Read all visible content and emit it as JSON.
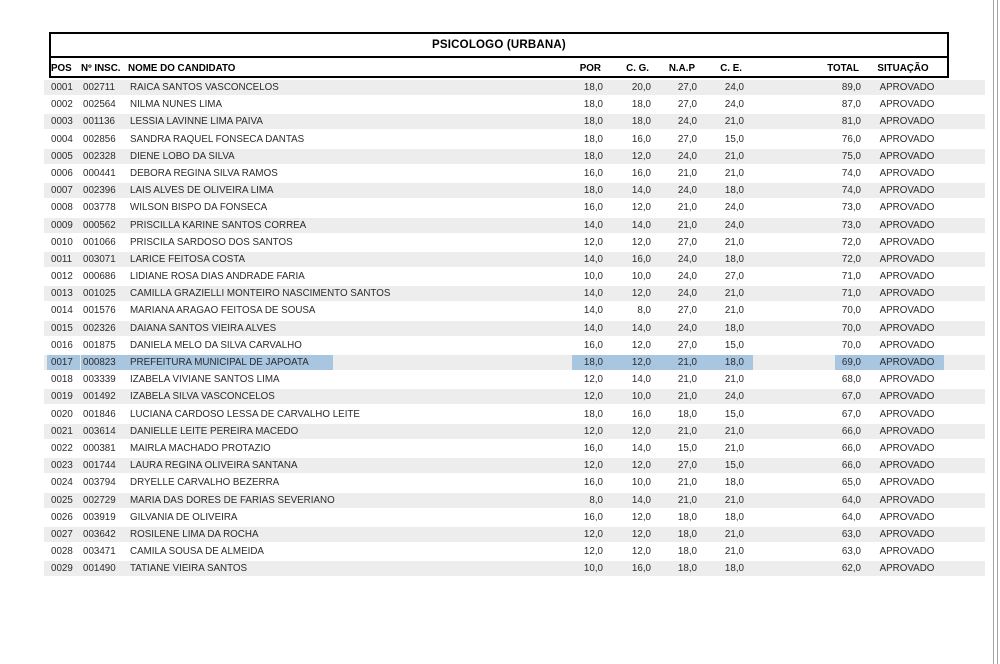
{
  "table": {
    "title": "PSICOLOGO (URBANA)",
    "columns": [
      "POS",
      "Nº INSC.",
      "NOME DO CANDIDATO",
      "POR",
      "C. G.",
      "N.A.P",
      "C. E.",
      "TOTAL",
      "SITUAÇÃO"
    ],
    "selected_pos": "0017",
    "rows": [
      {
        "pos": "0001",
        "insc": "002711",
        "name": "RAICA SANTOS VASCONCELOS",
        "por": "18,0",
        "cg": "20,0",
        "nap": "27,0",
        "ce": "24,0",
        "total": "89,0",
        "situacao": "APROVADO"
      },
      {
        "pos": "0002",
        "insc": "002564",
        "name": "NILMA NUNES LIMA",
        "por": "18,0",
        "cg": "18,0",
        "nap": "27,0",
        "ce": "24,0",
        "total": "87,0",
        "situacao": "APROVADO"
      },
      {
        "pos": "0003",
        "insc": "001136",
        "name": "LESSIA LAVINNE LIMA PAIVA",
        "por": "18,0",
        "cg": "18,0",
        "nap": "24,0",
        "ce": "21,0",
        "total": "81,0",
        "situacao": "APROVADO"
      },
      {
        "pos": "0004",
        "insc": "002856",
        "name": "SANDRA RAQUEL FONSECA DANTAS",
        "por": "18,0",
        "cg": "16,0",
        "nap": "27,0",
        "ce": "15,0",
        "total": "76,0",
        "situacao": "APROVADO"
      },
      {
        "pos": "0005",
        "insc": "002328",
        "name": "DIENE LOBO DA SILVA",
        "por": "18,0",
        "cg": "12,0",
        "nap": "24,0",
        "ce": "21,0",
        "total": "75,0",
        "situacao": "APROVADO"
      },
      {
        "pos": "0006",
        "insc": "000441",
        "name": "DEBORA REGINA SILVA RAMOS",
        "por": "16,0",
        "cg": "16,0",
        "nap": "21,0",
        "ce": "21,0",
        "total": "74,0",
        "situacao": "APROVADO"
      },
      {
        "pos": "0007",
        "insc": "002396",
        "name": "LAIS ALVES DE OLIVEIRA LIMA",
        "por": "18,0",
        "cg": "14,0",
        "nap": "24,0",
        "ce": "18,0",
        "total": "74,0",
        "situacao": "APROVADO"
      },
      {
        "pos": "0008",
        "insc": "003778",
        "name": "WILSON BISPO DA FONSECA",
        "por": "16,0",
        "cg": "12,0",
        "nap": "21,0",
        "ce": "24,0",
        "total": "73,0",
        "situacao": "APROVADO"
      },
      {
        "pos": "0009",
        "insc": "000562",
        "name": "PRISCILLA KARINE SANTOS CORREA",
        "por": "14,0",
        "cg": "14,0",
        "nap": "21,0",
        "ce": "24,0",
        "total": "73,0",
        "situacao": "APROVADO"
      },
      {
        "pos": "0010",
        "insc": "001066",
        "name": "PRISCILA SARDOSO DOS SANTOS",
        "por": "12,0",
        "cg": "12,0",
        "nap": "27,0",
        "ce": "21,0",
        "total": "72,0",
        "situacao": "APROVADO"
      },
      {
        "pos": "0011",
        "insc": "003071",
        "name": "LARICE FEITOSA COSTA",
        "por": "14,0",
        "cg": "16,0",
        "nap": "24,0",
        "ce": "18,0",
        "total": "72,0",
        "situacao": "APROVADO"
      },
      {
        "pos": "0012",
        "insc": "000686",
        "name": "LIDIANE ROSA DIAS ANDRADE FARIA",
        "por": "10,0",
        "cg": "10,0",
        "nap": "24,0",
        "ce": "27,0",
        "total": "71,0",
        "situacao": "APROVADO"
      },
      {
        "pos": "0013",
        "insc": "001025",
        "name": "CAMILLA GRAZIELLI MONTEIRO NASCIMENTO SANTOS",
        "por": "14,0",
        "cg": "12,0",
        "nap": "24,0",
        "ce": "21,0",
        "total": "71,0",
        "situacao": "APROVADO"
      },
      {
        "pos": "0014",
        "insc": "001576",
        "name": "MARIANA ARAGAO FEITOSA DE SOUSA",
        "por": "14,0",
        "cg": "8,0",
        "nap": "27,0",
        "ce": "21,0",
        "total": "70,0",
        "situacao": "APROVADO"
      },
      {
        "pos": "0015",
        "insc": "002326",
        "name": "DAIANA SANTOS VIEIRA ALVES",
        "por": "14,0",
        "cg": "14,0",
        "nap": "24,0",
        "ce": "18,0",
        "total": "70,0",
        "situacao": "APROVADO"
      },
      {
        "pos": "0016",
        "insc": "001875",
        "name": "DANIELA MELO DA SILVA CARVALHO",
        "por": "16,0",
        "cg": "12,0",
        "nap": "27,0",
        "ce": "15,0",
        "total": "70,0",
        "situacao": "APROVADO"
      },
      {
        "pos": "0017",
        "insc": "000823",
        "name": "PREFEITURA MUNICIPAL DE JAPOATA",
        "por": "18,0",
        "cg": "12,0",
        "nap": "21,0",
        "ce": "18,0",
        "total": "69,0",
        "situacao": "APROVADO"
      },
      {
        "pos": "0018",
        "insc": "003339",
        "name": "IZABELA VIVIANE SANTOS LIMA",
        "por": "12,0",
        "cg": "14,0",
        "nap": "21,0",
        "ce": "21,0",
        "total": "68,0",
        "situacao": "APROVADO"
      },
      {
        "pos": "0019",
        "insc": "001492",
        "name": "IZABELA SILVA VASCONCELOS",
        "por": "12,0",
        "cg": "10,0",
        "nap": "21,0",
        "ce": "24,0",
        "total": "67,0",
        "situacao": "APROVADO"
      },
      {
        "pos": "0020",
        "insc": "001846",
        "name": "LUCIANA CARDOSO LESSA DE CARVALHO LEITE",
        "por": "18,0",
        "cg": "16,0",
        "nap": "18,0",
        "ce": "15,0",
        "total": "67,0",
        "situacao": "APROVADO"
      },
      {
        "pos": "0021",
        "insc": "003614",
        "name": "DANIELLE LEITE PEREIRA MACEDO",
        "por": "12,0",
        "cg": "12,0",
        "nap": "21,0",
        "ce": "21,0",
        "total": "66,0",
        "situacao": "APROVADO"
      },
      {
        "pos": "0022",
        "insc": "000381",
        "name": "MAIRLA MACHADO PROTAZIO",
        "por": "16,0",
        "cg": "14,0",
        "nap": "15,0",
        "ce": "21,0",
        "total": "66,0",
        "situacao": "APROVADO"
      },
      {
        "pos": "0023",
        "insc": "001744",
        "name": "LAURA REGINA OLIVEIRA SANTANA",
        "por": "12,0",
        "cg": "12,0",
        "nap": "27,0",
        "ce": "15,0",
        "total": "66,0",
        "situacao": "APROVADO"
      },
      {
        "pos": "0024",
        "insc": "003794",
        "name": "DRYELLE CARVALHO BEZERRA",
        "por": "16,0",
        "cg": "10,0",
        "nap": "21,0",
        "ce": "18,0",
        "total": "65,0",
        "situacao": "APROVADO"
      },
      {
        "pos": "0025",
        "insc": "002729",
        "name": "MARIA DAS DORES DE FARIAS SEVERIANO",
        "por": "8,0",
        "cg": "14,0",
        "nap": "21,0",
        "ce": "21,0",
        "total": "64,0",
        "situacao": "APROVADO"
      },
      {
        "pos": "0026",
        "insc": "003919",
        "name": "GILVANIA DE OLIVEIRA",
        "por": "16,0",
        "cg": "12,0",
        "nap": "18,0",
        "ce": "18,0",
        "total": "64,0",
        "situacao": "APROVADO"
      },
      {
        "pos": "0027",
        "insc": "003642",
        "name": "ROSILENE LIMA DA ROCHA",
        "por": "12,0",
        "cg": "12,0",
        "nap": "18,0",
        "ce": "21,0",
        "total": "63,0",
        "situacao": "APROVADO"
      },
      {
        "pos": "0028",
        "insc": "003471",
        "name": "CAMILA SOUSA DE ALMEIDA",
        "por": "12,0",
        "cg": "12,0",
        "nap": "18,0",
        "ce": "21,0",
        "total": "63,0",
        "situacao": "APROVADO"
      },
      {
        "pos": "0029",
        "insc": "001490",
        "name": "TATIANE VIEIRA SANTOS",
        "por": "10,0",
        "cg": "16,0",
        "nap": "18,0",
        "ce": "18,0",
        "total": "62,0",
        "situacao": "APROVADO"
      }
    ]
  },
  "colors": {
    "stripe": "#ededed",
    "selection": "#a9c6e1",
    "box_border": "#000000",
    "edge_line": "#a3a3a3"
  }
}
